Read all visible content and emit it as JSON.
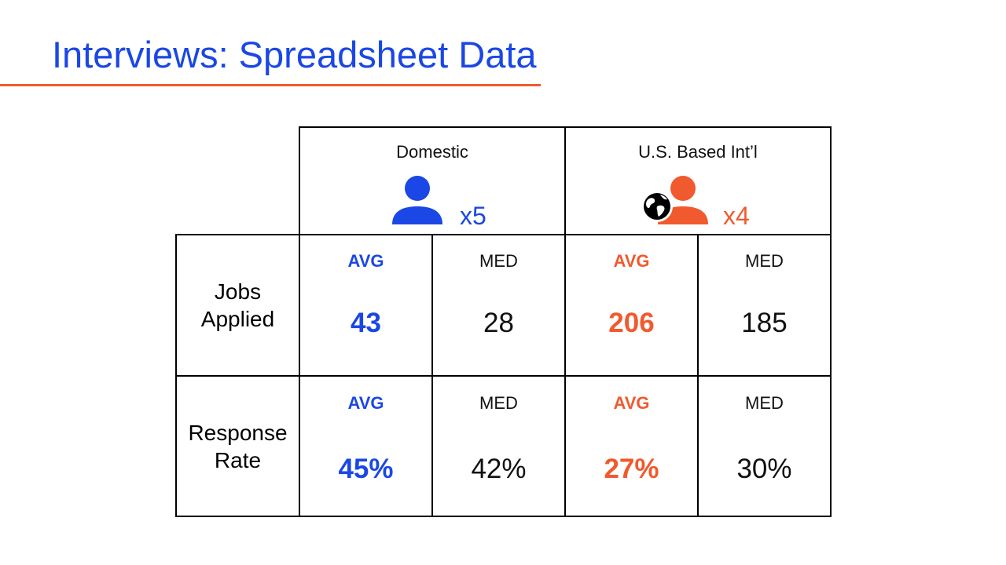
{
  "title": "Interviews: Spreadsheet Data",
  "colors": {
    "domestic": "#1a47e5",
    "international": "#f05a2e",
    "rule": "#f05a2e"
  },
  "groups": [
    {
      "label": "Domestic",
      "icon": "person-icon",
      "count": "x5"
    },
    {
      "label": "U.S. Based Int’l",
      "icon": "person-globe-icon",
      "count": "x4"
    }
  ],
  "rows": [
    {
      "label_lines": [
        "Jobs",
        "Applied"
      ],
      "cells": [
        {
          "label": "AVG",
          "value": "43"
        },
        {
          "label": "MED",
          "value": "28"
        },
        {
          "label": "AVG",
          "value": "206"
        },
        {
          "label": "MED",
          "value": "185"
        }
      ]
    },
    {
      "label_lines": [
        "Response",
        "Rate"
      ],
      "cells": [
        {
          "label": "AVG",
          "value": "45%"
        },
        {
          "label": "MED",
          "value": "42%"
        },
        {
          "label": "AVG",
          "value": "27%"
        },
        {
          "label": "MED",
          "value": "30%"
        }
      ]
    }
  ]
}
